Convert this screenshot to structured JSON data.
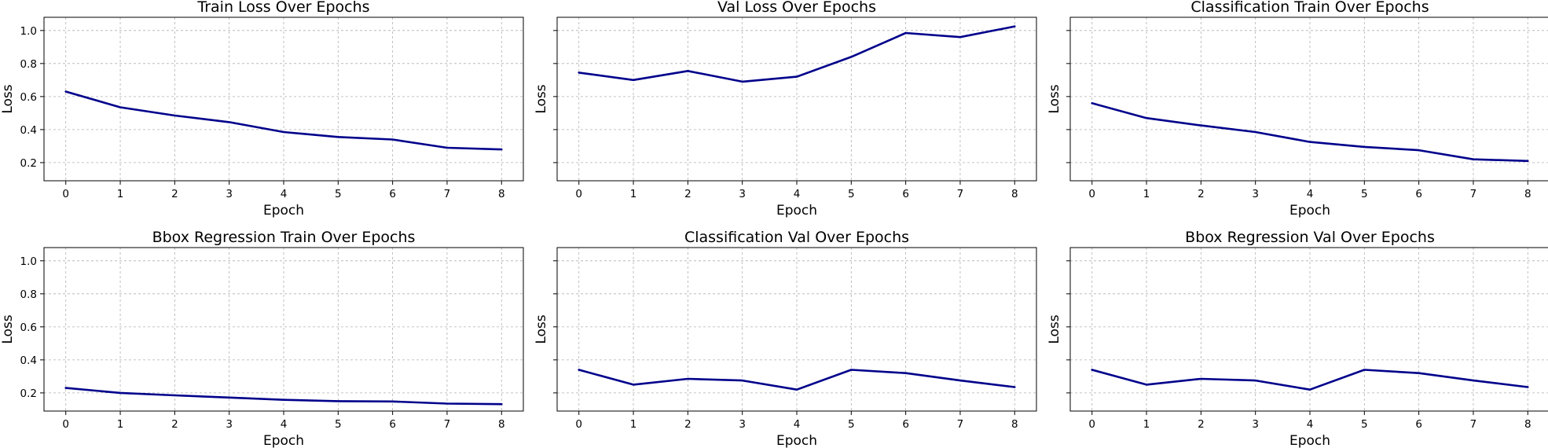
{
  "chart_data": [
    {
      "type": "line",
      "title": "Train Loss Over Epochs",
      "xlabel": "Epoch",
      "ylabel": "Loss",
      "x": [
        0,
        1,
        2,
        3,
        4,
        5,
        6,
        7,
        8
      ],
      "series": [
        {
          "values": [
            0.63,
            0.535,
            0.485,
            0.445,
            0.385,
            0.355,
            0.34,
            0.29,
            0.28
          ]
        }
      ],
      "xticks": [
        "0",
        "1",
        "2",
        "3",
        "4",
        "5",
        "6",
        "7",
        "8"
      ],
      "yticks": [
        0.2,
        0.4,
        0.6,
        0.8,
        1.0
      ],
      "ytick_labels": [
        "0.2",
        "0.4",
        "0.6",
        "0.8",
        "1.0"
      ],
      "xlim": [
        -0.4,
        8.4
      ],
      "ylim": [
        0.09,
        1.08
      ],
      "grid": true,
      "show_ytick_labels": true,
      "color": "#00008b"
    },
    {
      "type": "line",
      "title": "Val Loss Over Epochs",
      "xlabel": "Epoch",
      "ylabel": "Loss",
      "x": [
        0,
        1,
        2,
        3,
        4,
        5,
        6,
        7,
        8
      ],
      "series": [
        {
          "values": [
            0.745,
            0.7,
            0.755,
            0.69,
            0.72,
            0.84,
            0.985,
            0.96,
            1.025
          ]
        }
      ],
      "xticks": [
        "0",
        "1",
        "2",
        "3",
        "4",
        "5",
        "6",
        "7",
        "8"
      ],
      "yticks": [
        0.2,
        0.4,
        0.6,
        0.8,
        1.0
      ],
      "ytick_labels": [],
      "xlim": [
        -0.4,
        8.4
      ],
      "ylim": [
        0.09,
        1.08
      ],
      "grid": true,
      "show_ytick_labels": false,
      "color": "#00008b"
    },
    {
      "type": "line",
      "title": "Classification Train Over Epochs",
      "xlabel": "Epoch",
      "ylabel": "Loss",
      "x": [
        0,
        1,
        2,
        3,
        4,
        5,
        6,
        7,
        8
      ],
      "series": [
        {
          "values": [
            0.56,
            0.47,
            0.425,
            0.385,
            0.325,
            0.295,
            0.275,
            0.22,
            0.21
          ]
        }
      ],
      "xticks": [
        "0",
        "1",
        "2",
        "3",
        "4",
        "5",
        "6",
        "7",
        "8"
      ],
      "yticks": [
        0.2,
        0.4,
        0.6,
        0.8,
        1.0
      ],
      "ytick_labels": [],
      "xlim": [
        -0.4,
        8.4
      ],
      "ylim": [
        0.09,
        1.08
      ],
      "grid": true,
      "show_ytick_labels": false,
      "color": "#00008b"
    },
    {
      "type": "line",
      "title": "Bbox Regression Train Over Epochs",
      "xlabel": "Epoch",
      "ylabel": "Loss",
      "x": [
        0,
        1,
        2,
        3,
        4,
        5,
        6,
        7,
        8
      ],
      "series": [
        {
          "values": [
            0.23,
            0.2,
            0.185,
            0.172,
            0.158,
            0.15,
            0.148,
            0.135,
            0.132
          ]
        }
      ],
      "xticks": [
        "0",
        "1",
        "2",
        "3",
        "4",
        "5",
        "6",
        "7",
        "8"
      ],
      "yticks": [
        0.2,
        0.4,
        0.6,
        0.8,
        1.0
      ],
      "ytick_labels": [
        "0.2",
        "0.4",
        "0.6",
        "0.8",
        "1.0"
      ],
      "xlim": [
        -0.4,
        8.4
      ],
      "ylim": [
        0.09,
        1.08
      ],
      "grid": true,
      "show_ytick_labels": true,
      "color": "#00008b"
    },
    {
      "type": "line",
      "title": "Classification Val Over Epochs",
      "xlabel": "Epoch",
      "ylabel": "Loss",
      "x": [
        0,
        1,
        2,
        3,
        4,
        5,
        6,
        7,
        8
      ],
      "series": [
        {
          "values": [
            0.34,
            0.25,
            0.285,
            0.275,
            0.22,
            0.34,
            0.32,
            0.275,
            0.235
          ]
        }
      ],
      "xticks": [
        "0",
        "1",
        "2",
        "3",
        "4",
        "5",
        "6",
        "7",
        "8"
      ],
      "yticks": [
        0.2,
        0.4,
        0.6,
        0.8,
        1.0
      ],
      "ytick_labels": [],
      "xlim": [
        -0.4,
        8.4
      ],
      "ylim": [
        0.09,
        1.08
      ],
      "grid": true,
      "show_ytick_labels": false,
      "color": "#00008b"
    },
    {
      "type": "line",
      "title": "Bbox Regression Val Over Epochs",
      "xlabel": "Epoch",
      "ylabel": "Loss",
      "x": [
        0,
        1,
        2,
        3,
        4,
        5,
        6,
        7,
        8
      ],
      "series": [
        {
          "values": [
            0.34,
            0.25,
            0.285,
            0.275,
            0.22,
            0.34,
            0.32,
            0.275,
            0.235
          ]
        }
      ],
      "xticks": [
        "0",
        "1",
        "2",
        "3",
        "4",
        "5",
        "6",
        "7",
        "8"
      ],
      "yticks": [
        0.2,
        0.4,
        0.6,
        0.8,
        1.0
      ],
      "ytick_labels": [],
      "xlim": [
        -0.4,
        8.4
      ],
      "ylim": [
        0.09,
        1.08
      ],
      "grid": true,
      "show_ytick_labels": false,
      "color": "#00008b"
    }
  ]
}
